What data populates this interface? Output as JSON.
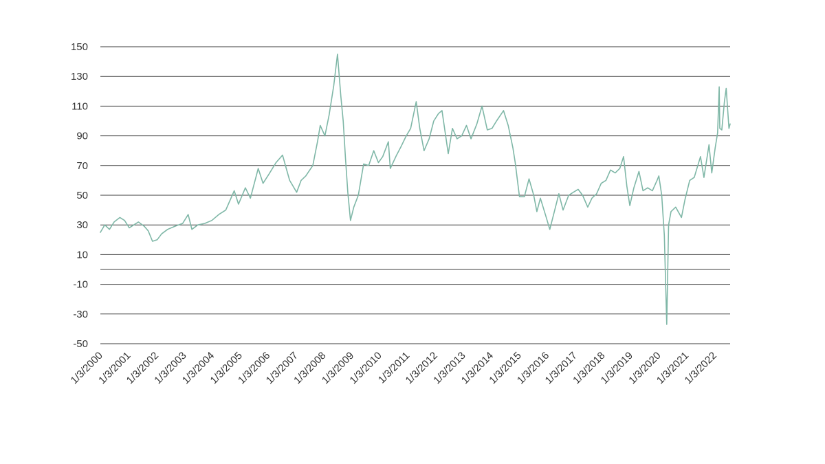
{
  "chart_data": {
    "type": "line",
    "title": "",
    "xlabel": "",
    "ylabel": "",
    "ylim": [
      -50,
      150
    ],
    "yticks": [
      150,
      130,
      110,
      90,
      70,
      50,
      30,
      10,
      -10,
      -30,
      -50
    ],
    "xlim": [
      "2000-01-03",
      "2022-07-29"
    ],
    "xticks": [
      {
        "date": "2000-01-03",
        "label": "1/3/2000"
      },
      {
        "date": "2001-01-03",
        "label": "1/3/2001"
      },
      {
        "date": "2002-01-03",
        "label": "1/3/2002"
      },
      {
        "date": "2003-01-03",
        "label": "1/3/2003"
      },
      {
        "date": "2004-01-03",
        "label": "1/3/2004"
      },
      {
        "date": "2005-01-03",
        "label": "1/3/2005"
      },
      {
        "date": "2006-01-03",
        "label": "1/3/2006"
      },
      {
        "date": "2007-01-03",
        "label": "1/3/2007"
      },
      {
        "date": "2008-01-03",
        "label": "1/3/2008"
      },
      {
        "date": "2009-01-03",
        "label": "1/3/2009"
      },
      {
        "date": "2010-01-03",
        "label": "1/3/2010"
      },
      {
        "date": "2011-01-03",
        "label": "1/3/2011"
      },
      {
        "date": "2012-01-03",
        "label": "1/3/2012"
      },
      {
        "date": "2013-01-03",
        "label": "1/3/2013"
      },
      {
        "date": "2014-01-03",
        "label": "1/3/2014"
      },
      {
        "date": "2015-01-03",
        "label": "1/3/2015"
      },
      {
        "date": "2016-01-03",
        "label": "1/3/2016"
      },
      {
        "date": "2017-01-03",
        "label": "1/3/2017"
      },
      {
        "date": "2018-01-03",
        "label": "1/3/2018"
      },
      {
        "date": "2019-01-03",
        "label": "1/3/2019"
      },
      {
        "date": "2020-01-03",
        "label": "1/3/2020"
      },
      {
        "date": "2021-01-03",
        "label": "1/3/2021"
      },
      {
        "date": "2022-01-03",
        "label": "1/3/2022"
      }
    ],
    "grid": true,
    "legend": "none",
    "series": [
      {
        "color": "#7fb7a7",
        "points": [
          [
            "2000-01-03",
            25
          ],
          [
            "2000-03-01",
            30
          ],
          [
            "2000-05-01",
            27
          ],
          [
            "2000-07-01",
            32
          ],
          [
            "2000-09-15",
            35
          ],
          [
            "2000-11-15",
            33
          ],
          [
            "2001-01-15",
            28
          ],
          [
            "2001-03-15",
            30
          ],
          [
            "2001-05-15",
            32
          ],
          [
            "2001-08-01",
            29
          ],
          [
            "2001-09-20",
            26
          ],
          [
            "2001-11-15",
            19
          ],
          [
            "2002-01-15",
            20
          ],
          [
            "2002-03-15",
            24
          ],
          [
            "2002-06-01",
            27
          ],
          [
            "2002-09-01",
            29
          ],
          [
            "2002-12-15",
            31
          ],
          [
            "2003-02-25",
            37
          ],
          [
            "2003-04-15",
            27
          ],
          [
            "2003-07-01",
            30
          ],
          [
            "2003-10-01",
            31
          ],
          [
            "2004-01-01",
            33
          ],
          [
            "2004-04-01",
            37
          ],
          [
            "2004-07-01",
            40
          ],
          [
            "2004-10-20",
            53
          ],
          [
            "2004-12-15",
            44
          ],
          [
            "2005-03-15",
            55
          ],
          [
            "2005-05-20",
            48
          ],
          [
            "2005-08-30",
            68
          ],
          [
            "2005-11-01",
            58
          ],
          [
            "2006-01-15",
            64
          ],
          [
            "2006-04-20",
            72
          ],
          [
            "2006-07-15",
            77
          ],
          [
            "2006-09-01",
            68
          ],
          [
            "2006-10-15",
            60
          ],
          [
            "2007-01-15",
            52
          ],
          [
            "2007-03-15",
            60
          ],
          [
            "2007-05-15",
            63
          ],
          [
            "2007-08-15",
            70
          ],
          [
            "2007-10-15",
            86
          ],
          [
            "2007-11-20",
            97
          ],
          [
            "2008-01-20",
            90
          ],
          [
            "2008-03-15",
            104
          ],
          [
            "2008-05-15",
            124
          ],
          [
            "2008-07-03",
            145
          ],
          [
            "2008-08-15",
            117
          ],
          [
            "2008-09-15",
            100
          ],
          [
            "2008-10-15",
            75
          ],
          [
            "2008-11-15",
            52
          ],
          [
            "2008-12-20",
            33
          ],
          [
            "2009-02-01",
            42
          ],
          [
            "2009-04-01",
            50
          ],
          [
            "2009-06-10",
            71
          ],
          [
            "2009-08-15",
            70
          ],
          [
            "2009-10-20",
            80
          ],
          [
            "2009-12-20",
            72
          ],
          [
            "2010-02-15",
            76
          ],
          [
            "2010-04-30",
            86
          ],
          [
            "2010-05-25",
            68
          ],
          [
            "2010-08-15",
            77
          ],
          [
            "2010-10-15",
            83
          ],
          [
            "2010-12-20",
            90
          ],
          [
            "2011-02-15",
            95
          ],
          [
            "2011-04-29",
            113
          ],
          [
            "2011-06-15",
            95
          ],
          [
            "2011-08-10",
            80
          ],
          [
            "2011-10-15",
            88
          ],
          [
            "2011-12-15",
            100
          ],
          [
            "2012-02-15",
            105
          ],
          [
            "2012-04-01",
            107
          ],
          [
            "2012-06-21",
            78
          ],
          [
            "2012-08-15",
            95
          ],
          [
            "2012-10-15",
            88
          ],
          [
            "2012-12-15",
            90
          ],
          [
            "2013-02-15",
            97
          ],
          [
            "2013-04-15",
            88
          ],
          [
            "2013-07-01",
            98
          ],
          [
            "2013-09-06",
            110
          ],
          [
            "2013-11-15",
            94
          ],
          [
            "2014-01-15",
            95
          ],
          [
            "2014-03-15",
            100
          ],
          [
            "2014-06-15",
            107
          ],
          [
            "2014-08-15",
            97
          ],
          [
            "2014-10-15",
            82
          ],
          [
            "2014-11-15",
            72
          ],
          [
            "2015-01-10",
            49
          ],
          [
            "2015-03-15",
            49
          ],
          [
            "2015-05-15",
            61
          ],
          [
            "2015-07-15",
            50
          ],
          [
            "2015-08-25",
            39
          ],
          [
            "2015-10-10",
            48
          ],
          [
            "2015-12-20",
            36
          ],
          [
            "2016-02-11",
            27
          ],
          [
            "2016-04-15",
            40
          ],
          [
            "2016-06-08",
            51
          ],
          [
            "2016-08-02",
            40
          ],
          [
            "2016-10-15",
            50
          ],
          [
            "2016-12-15",
            52
          ],
          [
            "2017-02-15",
            54
          ],
          [
            "2017-04-15",
            50
          ],
          [
            "2017-06-21",
            42
          ],
          [
            "2017-08-15",
            48
          ],
          [
            "2017-10-15",
            51
          ],
          [
            "2017-12-15",
            58
          ],
          [
            "2018-02-15",
            60
          ],
          [
            "2018-04-15",
            67
          ],
          [
            "2018-06-15",
            65
          ],
          [
            "2018-08-15",
            68
          ],
          [
            "2018-10-03",
            76
          ],
          [
            "2018-11-15",
            56
          ],
          [
            "2018-12-24",
            43
          ],
          [
            "2019-02-15",
            55
          ],
          [
            "2019-04-23",
            66
          ],
          [
            "2019-06-15",
            53
          ],
          [
            "2019-08-15",
            55
          ],
          [
            "2019-10-15",
            53
          ],
          [
            "2019-12-15",
            60
          ],
          [
            "2020-01-08",
            63
          ],
          [
            "2020-02-15",
            50
          ],
          [
            "2020-03-20",
            23
          ],
          [
            "2020-04-20",
            -37
          ],
          [
            "2020-05-15",
            30
          ],
          [
            "2020-06-15",
            39
          ],
          [
            "2020-08-15",
            42
          ],
          [
            "2020-10-30",
            35
          ],
          [
            "2020-12-15",
            47
          ],
          [
            "2021-02-15",
            60
          ],
          [
            "2021-04-15",
            62
          ],
          [
            "2021-07-06",
            76
          ],
          [
            "2021-08-20",
            62
          ],
          [
            "2021-10-26",
            84
          ],
          [
            "2021-12-01",
            65
          ],
          [
            "2022-01-15",
            82
          ],
          [
            "2022-02-15",
            92
          ],
          [
            "2022-03-08",
            123
          ],
          [
            "2022-03-16",
            95
          ],
          [
            "2022-04-11",
            94
          ],
          [
            "2022-05-15",
            113
          ],
          [
            "2022-06-08",
            122
          ],
          [
            "2022-07-14",
            95
          ],
          [
            "2022-07-29",
            98
          ]
        ]
      }
    ]
  }
}
